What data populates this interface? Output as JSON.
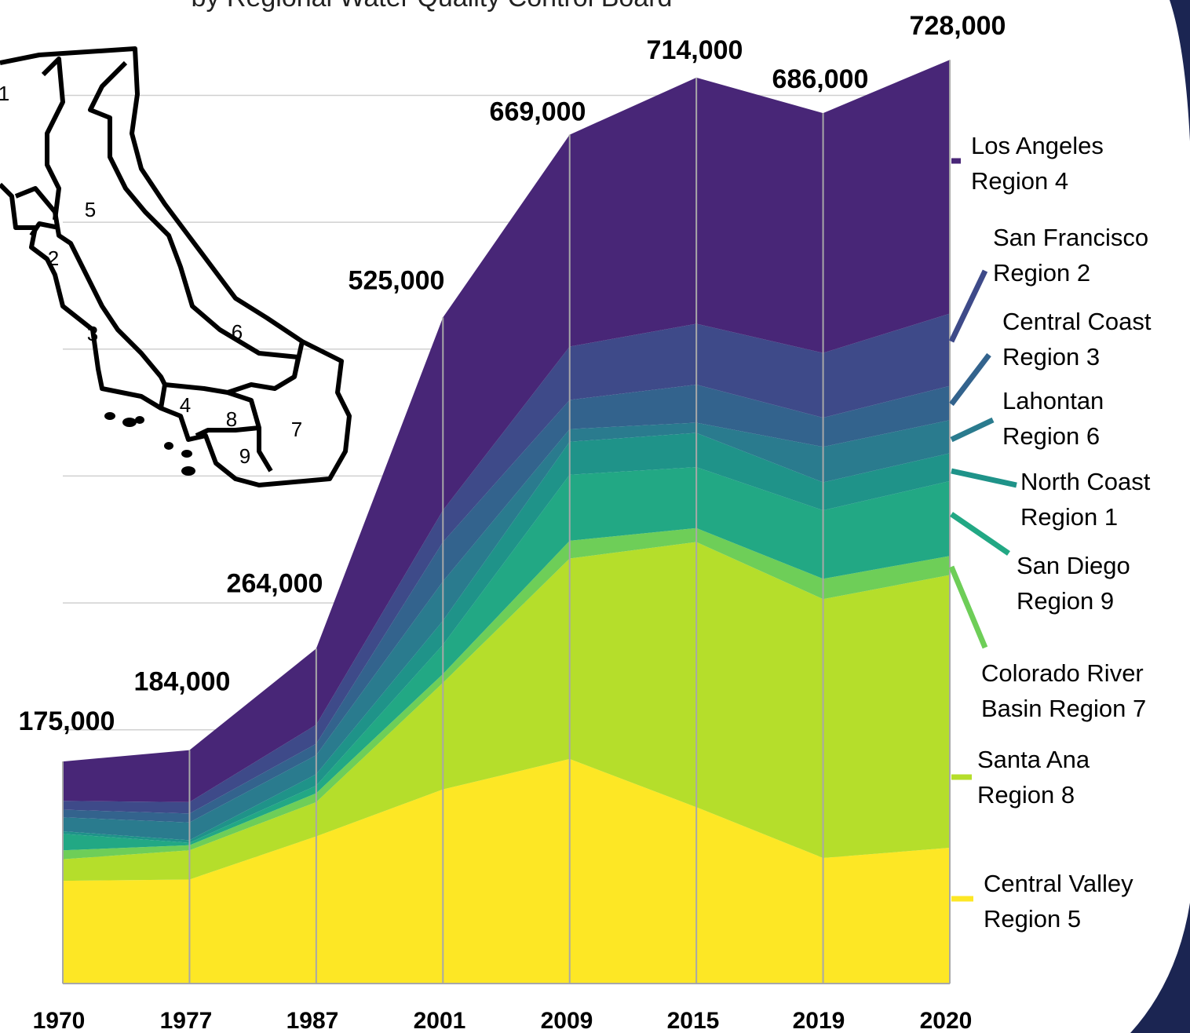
{
  "chart_data": {
    "type": "stacked-area",
    "subtitle": "by Regional Water Quality Control Board",
    "categories": [
      "1970",
      "1977",
      "1987",
      "2001",
      "2009",
      "2015",
      "2019",
      "2020"
    ],
    "series": [
      {
        "name": "Central Valley Region 5",
        "color": "#fde725",
        "values": [
          81000,
          82000,
          116000,
          153000,
          177000,
          139000,
          99000,
          107000
        ]
      },
      {
        "name": "Santa Ana Region 8",
        "color": "#b5de2b",
        "values": [
          17000,
          23000,
          27000,
          84000,
          158000,
          209000,
          204000,
          215000
        ]
      },
      {
        "name": "Colorado River Basin Region 7",
        "color": "#6ece58",
        "values": [
          7000,
          4000,
          7000,
          7000,
          14000,
          11000,
          16000,
          15000
        ]
      },
      {
        "name": "San Diego Region 9",
        "color": "#22a884",
        "values": [
          13000,
          2000,
          6000,
          23000,
          52000,
          48000,
          54000,
          59000
        ]
      },
      {
        "name": "North Coast Region 1",
        "color": "#1f9389",
        "values": [
          2000,
          2000,
          9000,
          19000,
          26000,
          27000,
          22000,
          22000
        ]
      },
      {
        "name": "Lahontan Region 6",
        "color": "#2a7b8e",
        "values": [
          11000,
          14000,
          15000,
          31000,
          10000,
          8000,
          28000,
          26000
        ]
      },
      {
        "name": "Central Coast Region 3",
        "color": "#33638d",
        "values": [
          6000,
          7000,
          9000,
          31000,
          23000,
          30000,
          23000,
          27000
        ]
      },
      {
        "name": "San Francisco Region 2",
        "color": "#3e4a89",
        "values": [
          7000,
          9000,
          15000,
          25000,
          42000,
          48000,
          51000,
          57000
        ]
      },
      {
        "name": "Los Angeles Region 4",
        "color": "#482677",
        "values": [
          31000,
          41000,
          60000,
          152000,
          167000,
          194000,
          189000,
          200000
        ]
      }
    ],
    "totals": [
      175000,
      184000,
      264000,
      525000,
      669000,
      714000,
      686000,
      728000
    ],
    "total_labels": [
      "175,000",
      "184,000",
      "264,000",
      "525,000",
      "669,000",
      "714,000",
      "686,000",
      "728,000"
    ],
    "ylim": [
      0,
      730000
    ],
    "yticks": [
      100000,
      200000,
      300000,
      400000,
      500000,
      600000,
      700000
    ],
    "grid": true,
    "map_labels": [
      "1",
      "5",
      "2",
      "3",
      "6",
      "4",
      "8",
      "7",
      "9"
    ]
  }
}
